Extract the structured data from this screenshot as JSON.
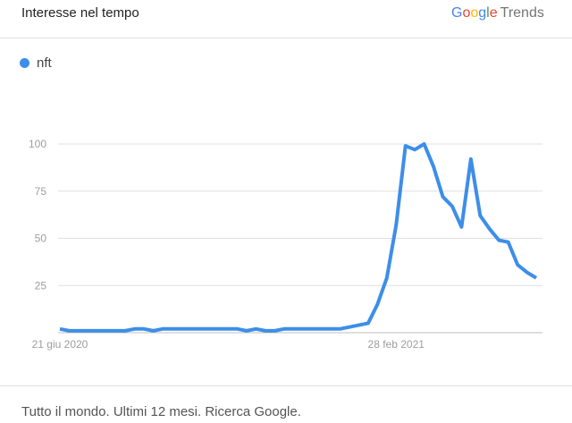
{
  "header": {
    "title": "Interesse nel tempo",
    "logo": "Google Trends"
  },
  "footer": "Tutto il mondo. Ultimi 12 mesi. Ricerca Google.",
  "chart_data": {
    "type": "line",
    "title": "",
    "xlabel": "",
    "ylabel": "",
    "ylim": [
      0,
      100
    ],
    "yticks": [
      25,
      50,
      75,
      100
    ],
    "x_tick_labels": [
      {
        "index": 0,
        "label": "21 giu 2020"
      },
      {
        "index": 36,
        "label": "28 feb 2021"
      }
    ],
    "grid": true,
    "legend": "top-left",
    "series": [
      {
        "name": "nft",
        "color": "#3d8ee8",
        "values": [
          2,
          1,
          1,
          1,
          1,
          1,
          1,
          1,
          2,
          2,
          1,
          2,
          2,
          2,
          2,
          2,
          2,
          2,
          2,
          2,
          1,
          2,
          1,
          1,
          2,
          2,
          2,
          2,
          2,
          2,
          2,
          3,
          4,
          5,
          15,
          29,
          57,
          99,
          97,
          100,
          88,
          72,
          67,
          56,
          92,
          62,
          55,
          49,
          48,
          36,
          32,
          29
        ]
      }
    ]
  }
}
